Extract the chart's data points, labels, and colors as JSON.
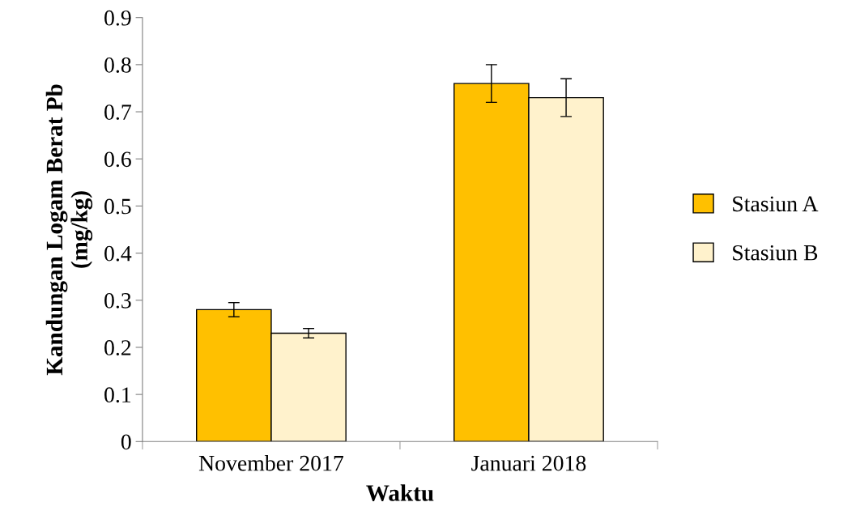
{
  "chart_data": {
    "type": "bar",
    "xlabel": "Waktu",
    "ylabel": "Kandungan Logam Berat Pb\n(mg/kg)",
    "categories": [
      "November 2017",
      "Januari 2018"
    ],
    "series": [
      {
        "name": "Stasiun A",
        "color": "#ffc000",
        "values": [
          0.28,
          0.76
        ],
        "errors": [
          0.015,
          0.04
        ]
      },
      {
        "name": "Stasiun B",
        "color": "#fff2cc",
        "values": [
          0.23,
          0.73
        ],
        "errors": [
          0.01,
          0.04
        ]
      }
    ],
    "ylim": [
      0,
      0.9
    ],
    "yticks": [
      {
        "value": 0,
        "label": "0"
      },
      0.1,
      0.2,
      0.3,
      0.4,
      0.5,
      0.6,
      0.7,
      0.8,
      0.9
    ],
    "grid": false,
    "legend": "right"
  }
}
